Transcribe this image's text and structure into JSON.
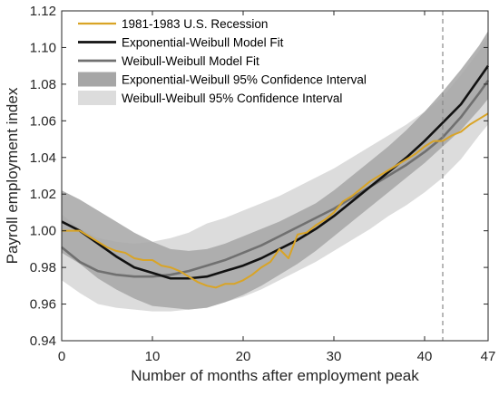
{
  "chart_data": {
    "type": "line",
    "xlabel": "Number of months after employment peak",
    "ylabel": "Payroll employment index",
    "xlim": [
      0,
      47
    ],
    "ylim": [
      0.94,
      1.12
    ],
    "xticks": [
      0,
      10,
      20,
      30,
      40,
      47
    ],
    "xtick_labels": [
      "0",
      "10",
      "20",
      "30",
      "40",
      "47"
    ],
    "yticks": [
      0.94,
      0.96,
      0.98,
      1.0,
      1.02,
      1.04,
      1.06,
      1.08,
      1.1,
      1.12
    ],
    "ytick_labels": [
      "0.94",
      "0.96",
      "0.98",
      "1.00",
      "1.02",
      "1.04",
      "1.06",
      "1.08",
      "1.10",
      "1.12"
    ],
    "grid": false,
    "legend_position": "top-left",
    "vertical_marker": {
      "x": 42,
      "style": "dashed",
      "color": "#888888"
    },
    "series": [
      {
        "name": "1981-1983 U.S. Recession",
        "kind": "line",
        "color": "#D9A426",
        "x": [
          0,
          1,
          2,
          3,
          4,
          5,
          6,
          7,
          8,
          9,
          10,
          11,
          12,
          13,
          14,
          15,
          16,
          17,
          18,
          19,
          20,
          21,
          22,
          23,
          24,
          25,
          26,
          27,
          28,
          29,
          30,
          31,
          32,
          33,
          34,
          35,
          36,
          37,
          38,
          39,
          40,
          41,
          42,
          43,
          44,
          45,
          46,
          47
        ],
        "y": [
          1.0,
          1.0,
          1.0,
          0.997,
          0.994,
          0.991,
          0.989,
          0.988,
          0.985,
          0.984,
          0.984,
          0.981,
          0.98,
          0.978,
          0.975,
          0.972,
          0.97,
          0.969,
          0.971,
          0.971,
          0.973,
          0.976,
          0.98,
          0.983,
          0.99,
          0.985,
          0.998,
          0.999,
          1.003,
          1.006,
          1.01,
          1.016,
          1.019,
          1.023,
          1.027,
          1.03,
          1.033,
          1.036,
          1.039,
          1.042,
          1.046,
          1.049,
          1.049,
          1.052,
          1.054,
          1.058,
          1.061,
          1.064
        ]
      },
      {
        "name": "Exponential-Weibull Model Fit",
        "kind": "line",
        "color": "#111111",
        "x": [
          0,
          2,
          4,
          6,
          8,
          10,
          12,
          14,
          16,
          18,
          20,
          22,
          24,
          26,
          28,
          30,
          32,
          34,
          36,
          38,
          40,
          42,
          44,
          46,
          47
        ],
        "y": [
          1.005,
          1.0,
          0.993,
          0.986,
          0.98,
          0.977,
          0.974,
          0.974,
          0.975,
          0.978,
          0.981,
          0.985,
          0.99,
          0.995,
          1.001,
          1.008,
          1.016,
          1.024,
          1.032,
          1.04,
          1.049,
          1.059,
          1.069,
          1.083,
          1.09
        ]
      },
      {
        "name": "Weibull-Weibull Model Fit",
        "kind": "line",
        "color": "#707070",
        "x": [
          0,
          2,
          4,
          6,
          8,
          10,
          12,
          14,
          16,
          18,
          20,
          22,
          24,
          26,
          28,
          30,
          32,
          34,
          36,
          38,
          40,
          42,
          44,
          46,
          47
        ],
        "y": [
          0.991,
          0.983,
          0.978,
          0.976,
          0.975,
          0.975,
          0.976,
          0.978,
          0.981,
          0.984,
          0.988,
          0.992,
          0.997,
          1.002,
          1.007,
          1.012,
          1.018,
          1.024,
          1.03,
          1.036,
          1.043,
          1.051,
          1.062,
          1.075,
          1.082
        ]
      },
      {
        "name": "Exponential-Weibull 95% Confidence Interval",
        "kind": "band",
        "color": "#A6A6A6",
        "x": [
          0,
          2,
          4,
          6,
          8,
          10,
          12,
          14,
          16,
          18,
          20,
          22,
          24,
          26,
          28,
          30,
          32,
          34,
          36,
          38,
          40,
          42,
          44,
          46,
          47
        ],
        "lower": [
          0.988,
          0.982,
          0.974,
          0.968,
          0.963,
          0.959,
          0.958,
          0.957,
          0.958,
          0.961,
          0.965,
          0.97,
          0.976,
          0.982,
          0.989,
          0.997,
          1.005,
          1.013,
          1.021,
          1.029,
          1.037,
          1.046,
          1.055,
          1.066,
          1.072
        ],
        "upper": [
          1.022,
          1.017,
          1.011,
          1.005,
          0.999,
          0.994,
          0.99,
          0.989,
          0.99,
          0.993,
          0.997,
          1.001,
          1.005,
          1.01,
          1.015,
          1.022,
          1.03,
          1.038,
          1.046,
          1.055,
          1.065,
          1.076,
          1.088,
          1.101,
          1.109
        ]
      },
      {
        "name": "Weibull-Weibull 95% Confidence Interval",
        "kind": "band",
        "color": "#DCDCDC",
        "x": [
          0,
          2,
          4,
          6,
          8,
          10,
          12,
          14,
          16,
          18,
          20,
          22,
          24,
          26,
          28,
          30,
          32,
          34,
          36,
          38,
          40,
          42,
          44,
          46,
          47
        ],
        "lower": [
          0.973,
          0.966,
          0.96,
          0.958,
          0.957,
          0.956,
          0.956,
          0.957,
          0.958,
          0.961,
          0.964,
          0.968,
          0.973,
          0.978,
          0.983,
          0.989,
          0.995,
          1.001,
          1.008,
          1.014,
          1.021,
          1.029,
          1.039,
          1.052,
          1.058
        ],
        "upper": [
          1.009,
          1.001,
          0.996,
          0.994,
          0.993,
          0.994,
          0.996,
          0.999,
          1.004,
          1.007,
          1.011,
          1.015,
          1.019,
          1.024,
          1.029,
          1.034,
          1.04,
          1.046,
          1.052,
          1.058,
          1.065,
          1.073,
          1.085,
          1.098,
          1.106
        ]
      }
    ]
  }
}
